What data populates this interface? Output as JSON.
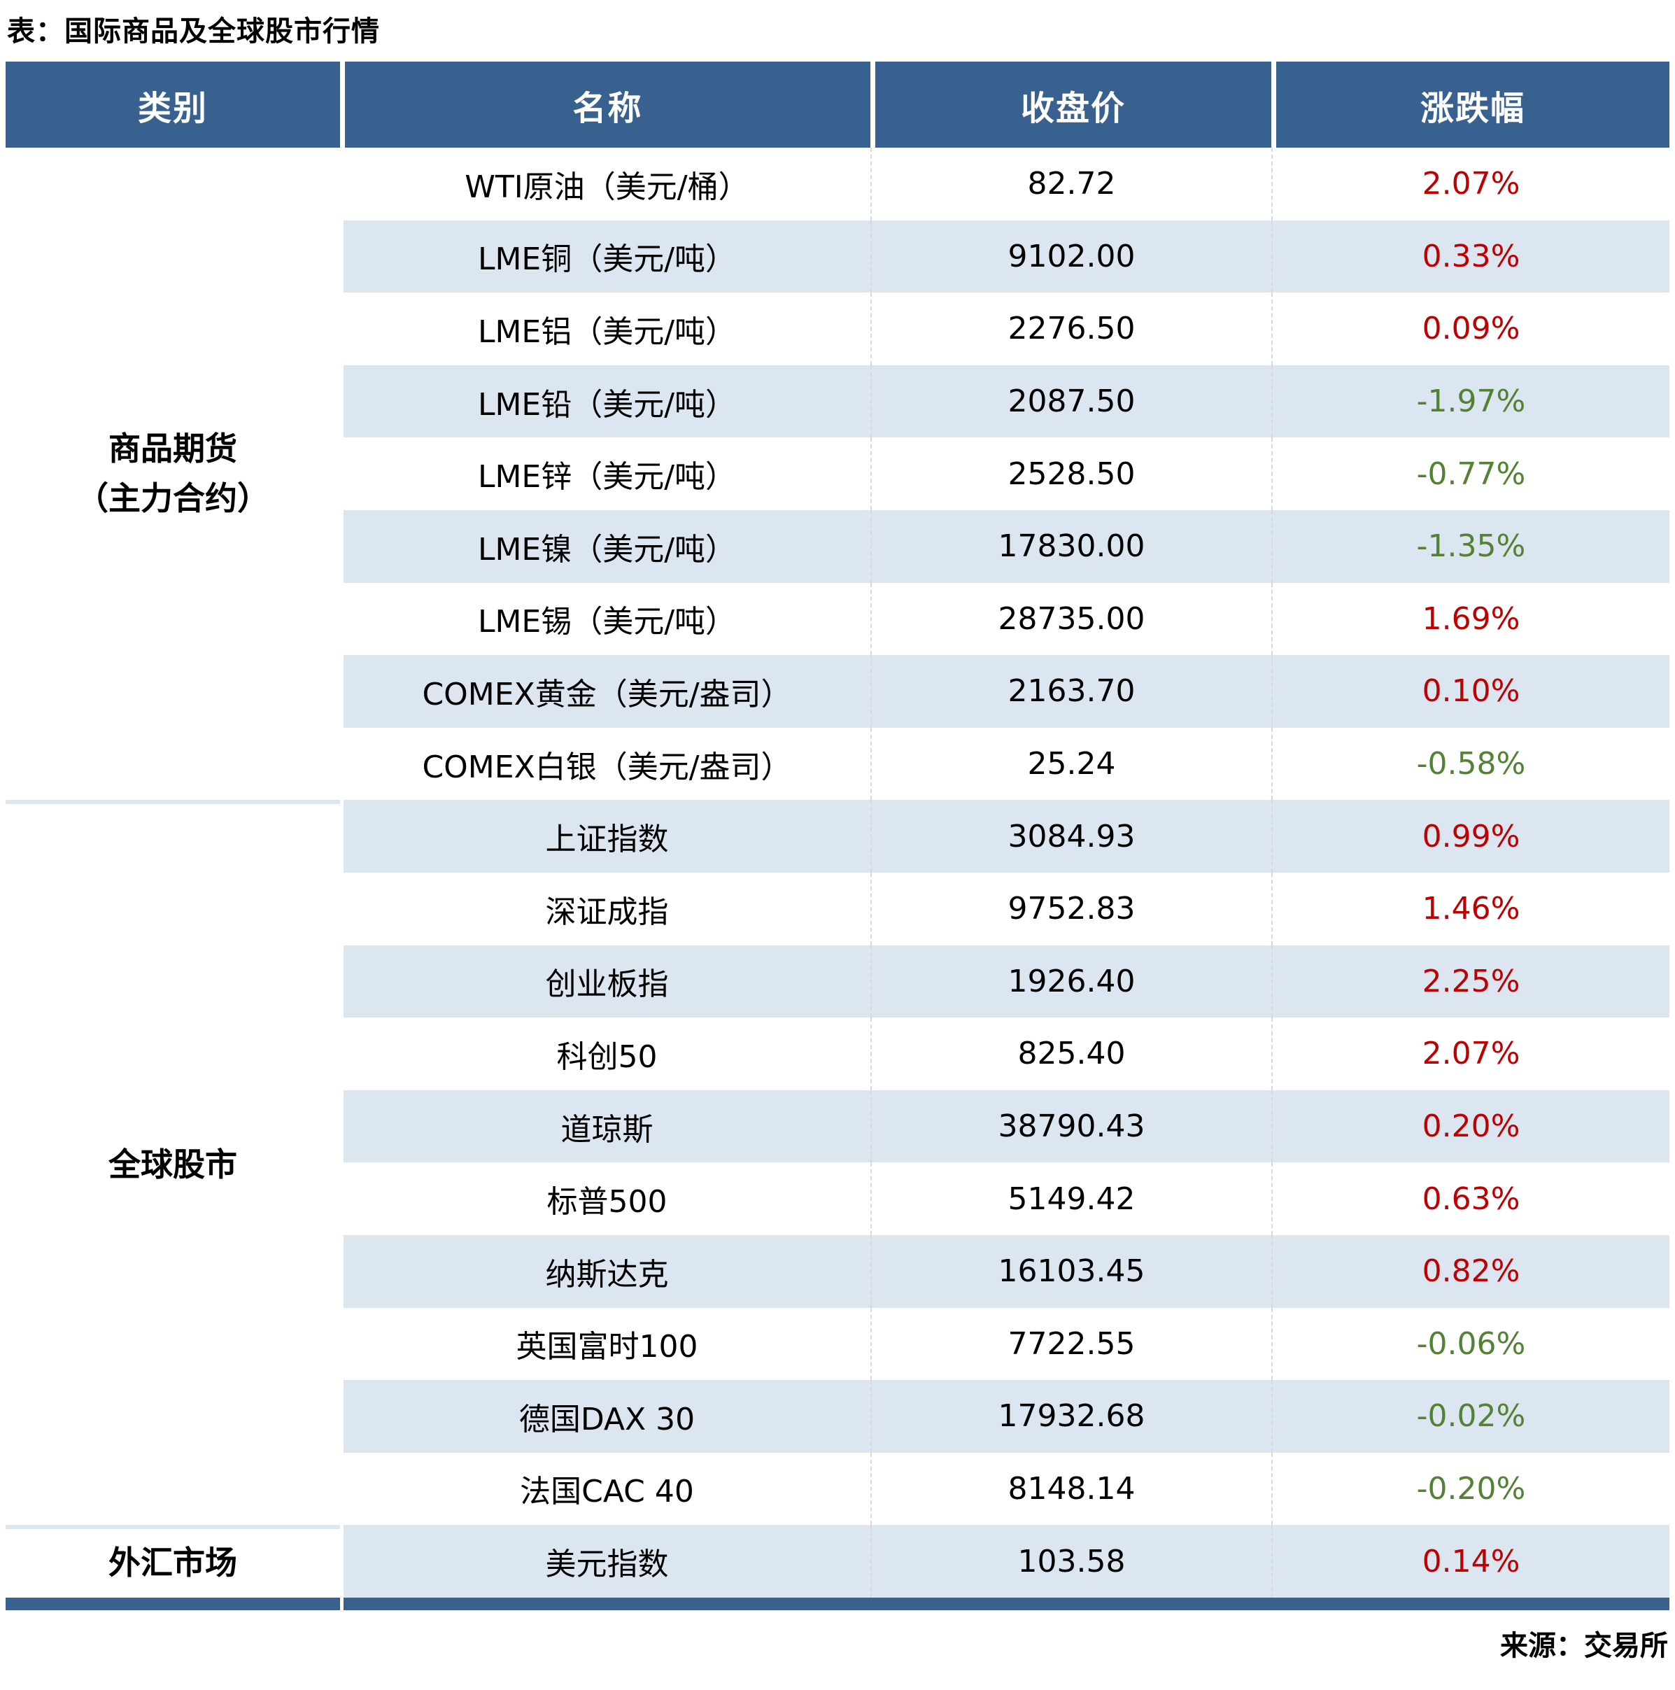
{
  "colors": {
    "header_bg": "#39618f",
    "alt_row_bg": "#dce6f0",
    "up_text": "#c00000",
    "down_text": "#548235"
  },
  "chart_data": {
    "type": "table",
    "title": "表：国际商品及全球股市行情",
    "columns": [
      "类别",
      "名称",
      "收盘价",
      "涨跌幅"
    ],
    "sections": [
      {
        "category_lines": [
          "商品期货",
          "（主力合约）"
        ],
        "rows": [
          {
            "name": "WTI原油（美元/桶）",
            "close": "82.72",
            "change": "2.07%",
            "direction": "up"
          },
          {
            "name": "LME铜（美元/吨）",
            "close": "9102.00",
            "change": "0.33%",
            "direction": "up"
          },
          {
            "name": "LME铝（美元/吨）",
            "close": "2276.50",
            "change": "0.09%",
            "direction": "up"
          },
          {
            "name": "LME铅（美元/吨）",
            "close": "2087.50",
            "change": "-1.97%",
            "direction": "down"
          },
          {
            "name": "LME锌（美元/吨）",
            "close": "2528.50",
            "change": "-0.77%",
            "direction": "down"
          },
          {
            "name": "LME镍（美元/吨）",
            "close": "17830.00",
            "change": "-1.35%",
            "direction": "down"
          },
          {
            "name": "LME锡（美元/吨）",
            "close": "28735.00",
            "change": "1.69%",
            "direction": "up"
          },
          {
            "name": "COMEX黄金（美元/盎司）",
            "close": "2163.70",
            "change": "0.10%",
            "direction": "up"
          },
          {
            "name": "COMEX白银（美元/盎司）",
            "close": "25.24",
            "change": "-0.58%",
            "direction": "down"
          }
        ]
      },
      {
        "category_lines": [
          "全球股市"
        ],
        "rows": [
          {
            "name": "上证指数",
            "close": "3084.93",
            "change": "0.99%",
            "direction": "up"
          },
          {
            "name": "深证成指",
            "close": "9752.83",
            "change": "1.46%",
            "direction": "up"
          },
          {
            "name": "创业板指",
            "close": "1926.40",
            "change": "2.25%",
            "direction": "up"
          },
          {
            "name": "科创50",
            "close": "825.40",
            "change": "2.07%",
            "direction": "up"
          },
          {
            "name": "道琼斯",
            "close": "38790.43",
            "change": "0.20%",
            "direction": "up"
          },
          {
            "name": "标普500",
            "close": "5149.42",
            "change": "0.63%",
            "direction": "up"
          },
          {
            "name": "纳斯达克",
            "close": "16103.45",
            "change": "0.82%",
            "direction": "up"
          },
          {
            "name": "英国富时100",
            "close": "7722.55",
            "change": "-0.06%",
            "direction": "down"
          },
          {
            "name": "德国DAX 30",
            "close": "17932.68",
            "change": "-0.02%",
            "direction": "down"
          },
          {
            "name": "法国CAC 40",
            "close": "8148.14",
            "change": "-0.20%",
            "direction": "down"
          }
        ]
      },
      {
        "category_lines": [
          "外汇市场"
        ],
        "rows": [
          {
            "name": "美元指数",
            "close": "103.58",
            "change": "0.14%",
            "direction": "up"
          }
        ]
      }
    ],
    "source": "来源：交易所"
  }
}
